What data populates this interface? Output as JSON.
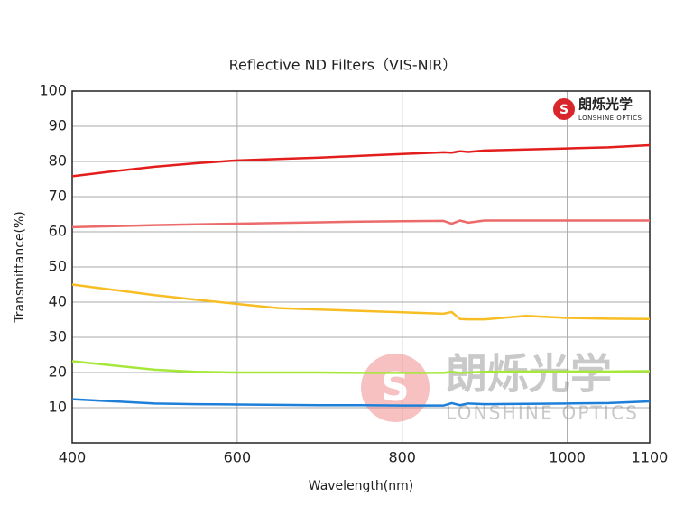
{
  "chart_data": {
    "type": "line",
    "title": "Reflective ND Filters（VIS-NIR）",
    "x_label": "Wavelength(nm)",
    "y_label": "Transmittance(%)",
    "brand": {
      "name": "朗烁光学",
      "name_en": "LONSHINE OPTICS"
    },
    "x": [
      400,
      450,
      500,
      550,
      600,
      650,
      700,
      750,
      800,
      850,
      860,
      870,
      880,
      900,
      950,
      1000,
      1050,
      1100
    ],
    "series": [
      {
        "color": "#e31c1c",
        "values": [
          75.8,
          77.2,
          78.5,
          79.5,
          80.3,
          80.7,
          81.1,
          81.6,
          82.1,
          82.6,
          82.5,
          82.9,
          82.7,
          83.1,
          83.4,
          83.7,
          84.0,
          84.6
        ]
      },
      {
        "color": "#ec6a6a",
        "values": [
          61.3,
          61.6,
          61.9,
          62.1,
          62.3,
          62.5,
          62.7,
          62.9,
          63.0,
          63.1,
          62.3,
          63.2,
          62.6,
          63.2,
          63.2,
          63.2,
          63.2,
          63.2
        ]
      },
      {
        "color": "#f7bd22",
        "values": [
          45,
          43.5,
          42,
          40.7,
          39.5,
          38.3,
          37.9,
          37.5,
          37.1,
          36.7,
          37.2,
          35.2,
          35.1,
          35.1,
          36.1,
          35.5,
          35.3,
          35.2
        ]
      },
      {
        "color": "#a6e83a",
        "values": [
          23.2,
          22,
          20.8,
          20.2,
          20,
          20,
          20,
          19.9,
          19.9,
          19.9,
          20.2,
          19.9,
          20,
          20.2,
          20.3,
          20.3,
          20.3,
          20.4
        ]
      },
      {
        "color": "#1e7fd8",
        "values": [
          12.4,
          11.8,
          11.2,
          11.0,
          10.9,
          10.8,
          10.7,
          10.7,
          10.6,
          10.6,
          11.3,
          10.7,
          11.2,
          11.0,
          11.1,
          11.2,
          11.3,
          11.8
        ]
      }
    ],
    "xlim": [
      400,
      1100
    ],
    "xticks": [
      400,
      600,
      800,
      1000,
      1100
    ],
    "ylim": [
      0,
      100
    ],
    "yticks": [
      10,
      20,
      30,
      40,
      50,
      60,
      70,
      80,
      90,
      100
    ],
    "grid": true
  }
}
